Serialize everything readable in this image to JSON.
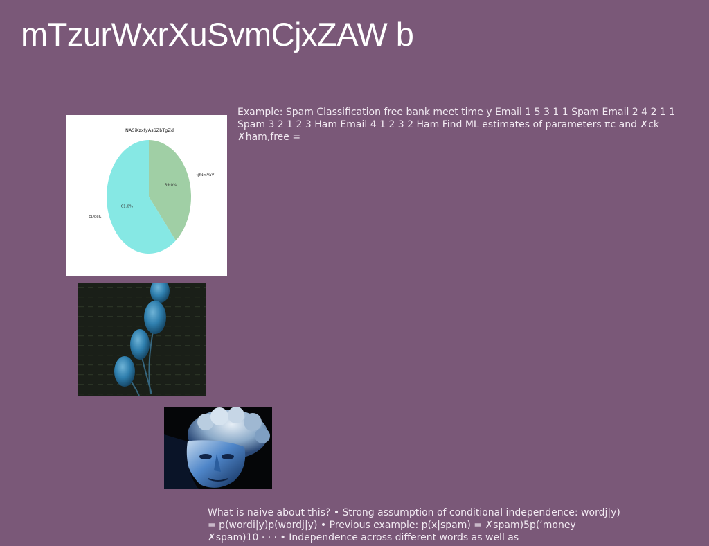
{
  "slide": {
    "title": "mTzurWxrXuSvmCjxZAW b",
    "paragraph_top": "Example: Spam Classification free bank meet time y Email 1 5 3 1 1 Spam Email 2 4 2 1 1 Spam 3 2 1 2 3 Ham Email 4 1 2 3 2 Ham Find ML estimates of parameters πc and ✗ck ✗ham,free =",
    "paragraph_bottom": "What is naive about this? • Strong assumption of conditional independence: wordj|y) = p(wordi|y)p(wordj|y) • Previous example: p(x|spam) = ✗spam)5p(‘money ✗spam)10 · · · • Independence across different words as well as"
  },
  "chart_data": {
    "type": "pie",
    "title": "NASiKzxfyAsSZbTgZd",
    "labels": [
      "tjfNmVaV",
      "EDqeK"
    ],
    "values": [
      39.0,
      61.0
    ],
    "percent_labels": [
      "39.0%",
      "61.0%"
    ],
    "colors": [
      "#a0cfa5",
      "#86e8e4"
    ]
  },
  "images": {
    "pods_icon": "blue-seed-pods-photo",
    "bust_icon": "blue-statue-bust-photo"
  }
}
